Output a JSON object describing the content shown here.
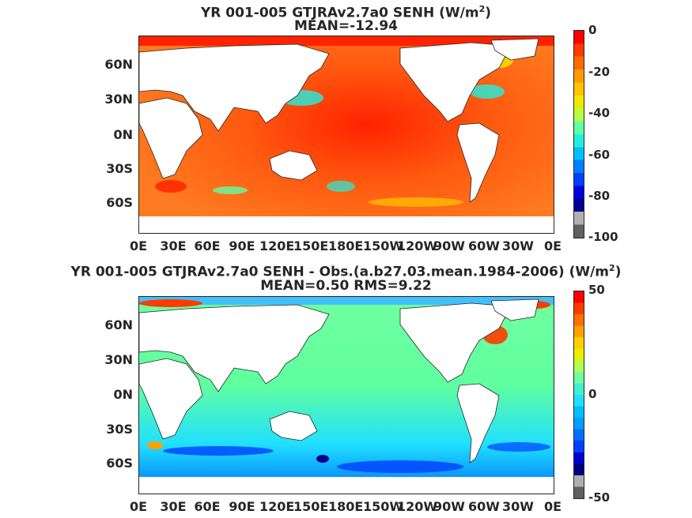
{
  "panels": [
    {
      "title_line1": "YR 001-005 GTJRAv2.7a0  SENH (W/m",
      "title_sup": "2",
      "title_line1_end": ")",
      "title_line2": "MEAN=-12.94",
      "colorbar": {
        "ticks": [
          "0",
          "-20",
          "-40",
          "-60",
          "-80",
          "-100"
        ],
        "range": [
          -100,
          0
        ],
        "colors": [
          "#ff0000",
          "#ff3a00",
          "#ff6a00",
          "#ff9a00",
          "#ffc400",
          "#f0e800",
          "#b8ff40",
          "#60ffa0",
          "#20f0e0",
          "#00c0ff",
          "#0080ff",
          "#0040ff",
          "#0000e0",
          "#000090",
          "#b0b0b0",
          "#606060"
        ]
      }
    },
    {
      "title_line1": "YR 001-005 GTJRAv2.7a0 SENH - Obs.(a.b27.03.mean.1984-2006) (W/m",
      "title_sup": "2",
      "title_line1_end": ")",
      "title_line2": "MEAN=0.50 RMS=9.22",
      "colorbar": {
        "ticks": [
          "50",
          "0",
          "-50"
        ],
        "range": [
          -50,
          50
        ],
        "colors": [
          "#ff0000",
          "#ff3a00",
          "#ff7000",
          "#ffa000",
          "#ffd000",
          "#e8f000",
          "#b0ff50",
          "#70ffa0",
          "#40f0d0",
          "#20e0ff",
          "#00c0ff",
          "#00a0ff",
          "#0070ff",
          "#0040ff",
          "#0000d0",
          "#000080",
          "#b0b0b0",
          "#606060"
        ]
      }
    }
  ],
  "axes": {
    "y_ticks": [
      "60N",
      "30N",
      "0N",
      "30S",
      "60S"
    ],
    "x_ticks": [
      "0E",
      "30E",
      "60E",
      "90E",
      "120E",
      "150E",
      "180E",
      "150W",
      "120W",
      "90W",
      "60W",
      "30W",
      "0E"
    ]
  },
  "colors": {
    "land": "#ffffff",
    "panel1_ocean": "#ff6a10",
    "panel2_ocean": "#40e0e0"
  }
}
